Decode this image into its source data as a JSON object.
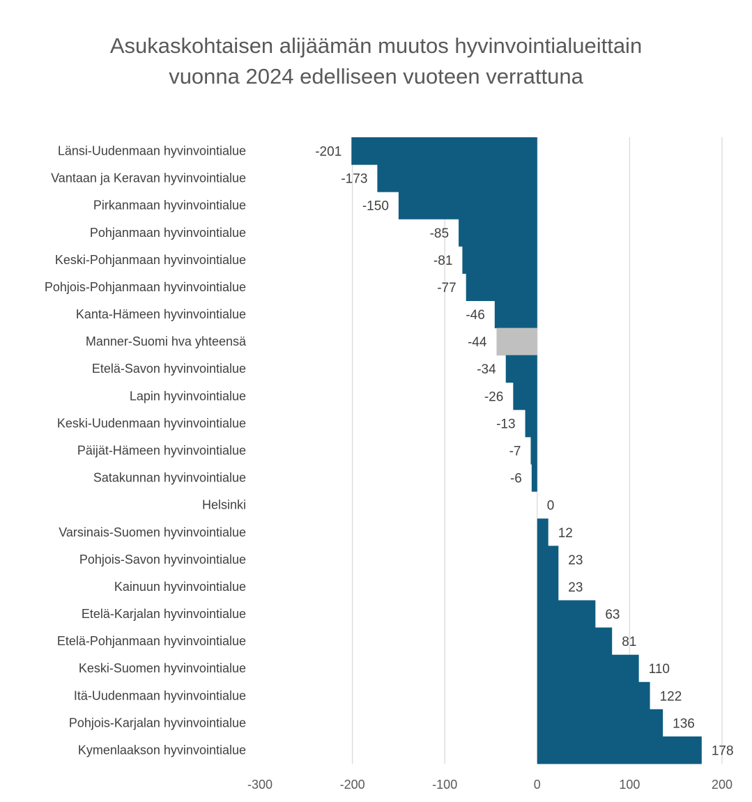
{
  "chart_data": {
    "type": "bar",
    "orientation": "horizontal",
    "title": "Asukaskohtaisen alijäämän muutos hyvinvointialueittain vuonna 2024 edelliseen vuoteen verrattuna",
    "xlabel": "",
    "ylabel": "",
    "xlim": [
      -300,
      200
    ],
    "xticks": [
      -300,
      -200,
      -100,
      0,
      100,
      200
    ],
    "grid": "vertical",
    "legend": "none",
    "colors": {
      "default": "#0f5c80",
      "highlight": "#c0c0c0"
    },
    "categories": [
      "Länsi-Uudenmaan hyvinvointialue",
      "Vantaan ja Keravan hyvinvointialue",
      "Pirkanmaan hyvinvointialue",
      "Pohjanmaan hyvinvointialue",
      "Keski-Pohjanmaan hyvinvointialue",
      "Pohjois-Pohjanmaan hyvinvointialue",
      "Kanta-Hämeen hyvinvointialue",
      "Manner-Suomi hva yhteensä",
      "Etelä-Savon hyvinvointialue",
      "Lapin hyvinvointialue",
      "Keski-Uudenmaan hyvinvointialue",
      "Päijät-Hämeen hyvinvointialue",
      "Satakunnan hyvinvointialue",
      "Helsinki",
      "Varsinais-Suomen hyvinvointialue",
      "Pohjois-Savon hyvinvointialue",
      "Kainuun hyvinvointialue",
      "Etelä-Karjalan hyvinvointialue",
      "Etelä-Pohjanmaan hyvinvointialue",
      "Keski-Suomen hyvinvointialue",
      "Itä-Uudenmaan hyvinvointialue",
      "Pohjois-Karjalan hyvinvointialue",
      "Kymenlaakson hyvinvointialue"
    ],
    "values": [
      -201,
      -173,
      -150,
      -85,
      -81,
      -77,
      -46,
      -44,
      -34,
      -26,
      -13,
      -7,
      -6,
      0,
      12,
      23,
      23,
      63,
      81,
      110,
      122,
      136,
      178
    ],
    "highlighted_category": "Manner-Suomi hva yhteensä"
  }
}
